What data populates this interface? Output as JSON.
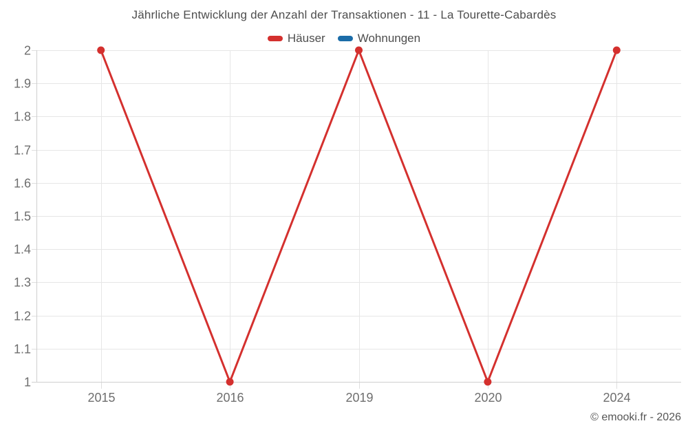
{
  "header": {
    "title": "Jährliche Entwicklung der Anzahl der Transaktionen - 11 - La Tourette-Cabardès"
  },
  "chart_data": {
    "type": "line",
    "title": "Jährliche Entwicklung der Anzahl der Transaktionen - 11 - La Tourette-Cabardès",
    "categories": [
      "2015",
      "2016",
      "2019",
      "2020",
      "2024"
    ],
    "series": [
      {
        "name": "Häuser",
        "color": "#d4302e",
        "values": [
          2,
          1,
          2,
          1,
          2
        ]
      },
      {
        "name": "Wohnungen",
        "color": "#1b6ca8",
        "values": []
      }
    ],
    "xlabel": "",
    "ylabel": "",
    "ylim": [
      1,
      2
    ],
    "ytick_step": 0.1,
    "ytick_labels": [
      "2",
      "1.9",
      "1.8",
      "1.7",
      "1.6",
      "1.5",
      "1.4",
      "1.3",
      "1.2",
      "1.1",
      "1"
    ],
    "grid": true,
    "legend_position": "top-center",
    "marker_radius": 5.5,
    "line_width": 3
  },
  "footer": {
    "credit": "© emooki.fr - 2026"
  },
  "theme": {
    "background": "#ffffff",
    "grid_color": "#e6e6e6",
    "axis_color": "#cfcfcf",
    "tick_color": "#dedede",
    "axis_label_color": "#6e6e6e",
    "title_color": "#4d4d4d",
    "credit_color": "#565656"
  }
}
